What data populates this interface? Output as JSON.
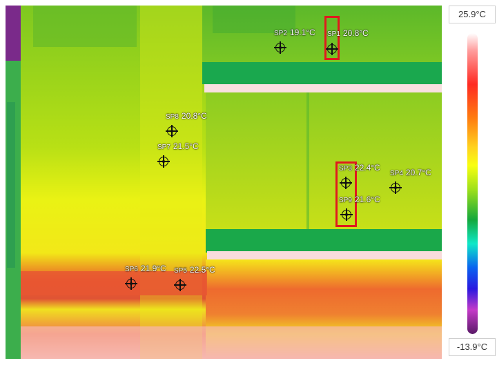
{
  "scale": {
    "max_label": "25.9°C",
    "min_label": "-13.9°C"
  },
  "spots": [
    {
      "name": "SP2",
      "temp": "19.1°C"
    },
    {
      "name": "SP1",
      "temp": "20.8°C"
    },
    {
      "name": "SP8",
      "temp": "20.8°C"
    },
    {
      "name": "SP7",
      "temp": "21.5°C"
    },
    {
      "name": "SP3",
      "temp": "22.4°C"
    },
    {
      "name": "SP4",
      "temp": "20.7°C"
    },
    {
      "name": "SP9",
      "temp": "21.6°C"
    },
    {
      "name": "SP6",
      "temp": "21.9°C"
    },
    {
      "name": "SP5",
      "temp": "22.5°C"
    }
  ]
}
